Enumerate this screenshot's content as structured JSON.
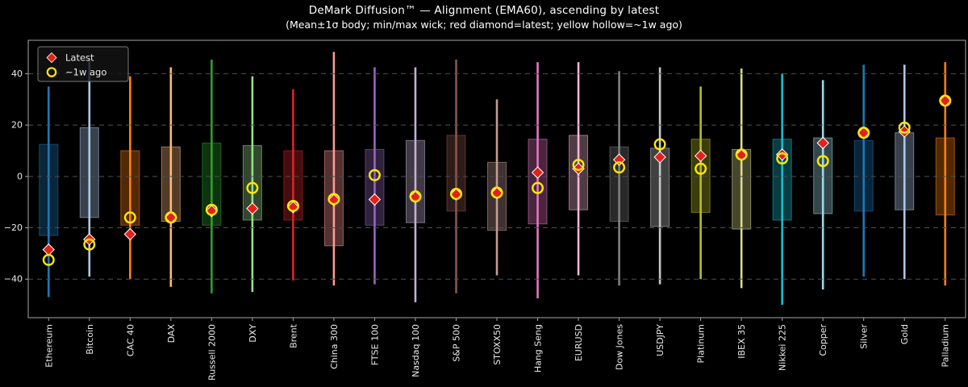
{
  "title": "DeMark Diffusion™ — Alignment (EMA60), ascending by latest",
  "subtitle": "(Mean±1σ body; min/max wick; red diamond=latest; yellow hollow=~1w ago)",
  "legend": {
    "items": [
      {
        "label": "Latest",
        "marker": "red-diamond"
      },
      {
        "label": "~1w ago",
        "marker": "yellow-hollow-circle"
      }
    ]
  },
  "colors": {
    "background": "#000000",
    "axes_frame": "#a6a6a6",
    "grid": "#4f4f4f",
    "tick_label": "#eaeaea",
    "title_text": "#ffffff",
    "latest_marker": "#e32119",
    "week_ago_marker": "#ffe800",
    "marker_edge": "#ffffff",
    "legend_bg": "#141414",
    "legend_border": "#787878"
  },
  "chart_data": {
    "type": "candlestick-range",
    "title": "DeMark Diffusion™ — Alignment (EMA60), ascending by latest",
    "subtitle": "(Mean±1σ body; min/max wick; red diamond=latest; yellow hollow=~1w ago)",
    "xlabel": "",
    "ylabel": "",
    "yticks": [
      -40,
      -20,
      0,
      20,
      40
    ],
    "ylim": [
      -55,
      53
    ],
    "grid": "horizontal-dashed",
    "legend_position": "upper-left",
    "assets": [
      {
        "name": "Ethereum",
        "color": "#1f77b4",
        "min": -47,
        "body_low": -23,
        "body_high": 12.5,
        "max": 35,
        "latest": -28.5,
        "week_ago": -32.5
      },
      {
        "name": "Bitcoin",
        "color": "#aec7e8",
        "min": -39,
        "body_low": -16,
        "body_high": 19,
        "max": 46,
        "latest": -24.5,
        "week_ago": -26.5
      },
      {
        "name": "CAC 40",
        "color": "#ff7f0e",
        "min": -40,
        "body_low": -19,
        "body_high": 10,
        "max": 39,
        "latest": -22.5,
        "week_ago": -16
      },
      {
        "name": "DAX",
        "color": "#ffbb78",
        "min": -43,
        "body_low": -17.5,
        "body_high": 11.5,
        "max": 42.5,
        "latest": -16,
        "week_ago": -16
      },
      {
        "name": "Russell 2000",
        "color": "#2ca02c",
        "min": -45.5,
        "body_low": -19,
        "body_high": 13,
        "max": 45.5,
        "latest": -13.5,
        "week_ago": -13
      },
      {
        "name": "DXY",
        "color": "#98df8a",
        "min": -45,
        "body_low": -17,
        "body_high": 12,
        "max": 39,
        "latest": -12.5,
        "week_ago": -4.5
      },
      {
        "name": "Brent",
        "color": "#d62728",
        "min": -40.5,
        "body_low": -17,
        "body_high": 10,
        "max": 34,
        "latest": -12,
        "week_ago": -11.5
      },
      {
        "name": "China 300",
        "color": "#ff9896",
        "min": -42.5,
        "body_low": -27,
        "body_high": 10,
        "max": 48.5,
        "latest": -9.2,
        "week_ago": -8.8
      },
      {
        "name": "FTSE 100",
        "color": "#9467bd",
        "min": -42,
        "body_low": -19,
        "body_high": 10.5,
        "max": 42.5,
        "latest": -9,
        "week_ago": 0.5
      },
      {
        "name": "Nasdaq 100",
        "color": "#c5b0d5",
        "min": -49,
        "body_low": -18,
        "body_high": 14,
        "max": 42.5,
        "latest": -8,
        "week_ago": -7.8
      },
      {
        "name": "S&P 500",
        "color": "#8c564b",
        "min": -45.5,
        "body_low": -13.5,
        "body_high": 16,
        "max": 45.5,
        "latest": -7,
        "week_ago": -6.8
      },
      {
        "name": "STOXX50",
        "color": "#c49c94",
        "min": -38.5,
        "body_low": -21,
        "body_high": 5.5,
        "max": 30,
        "latest": -6.5,
        "week_ago": -6.3
      },
      {
        "name": "Hang Seng",
        "color": "#e377c2",
        "min": -47.5,
        "body_low": -18.5,
        "body_high": 14.5,
        "max": 44.5,
        "latest": 1.5,
        "week_ago": -4.5
      },
      {
        "name": "EURUSD",
        "color": "#f7b6d2",
        "min": -38.5,
        "body_low": -13,
        "body_high": 16,
        "max": 44.5,
        "latest": 3,
        "week_ago": 4.5
      },
      {
        "name": "Dow Jones",
        "color": "#7f7f7f",
        "min": -42.5,
        "body_low": -17.5,
        "body_high": 11.5,
        "max": 41,
        "latest": 6.5,
        "week_ago": 3.5
      },
      {
        "name": "USDJPY",
        "color": "#c7c7c7",
        "min": -42,
        "body_low": -19.5,
        "body_high": 11,
        "max": 42.5,
        "latest": 7.5,
        "week_ago": 12.5
      },
      {
        "name": "Platinum",
        "color": "#bcbd22",
        "min": -40,
        "body_low": -14,
        "body_high": 14.5,
        "max": 35,
        "latest": 8,
        "week_ago": 3
      },
      {
        "name": "IBEX 35",
        "color": "#dbdb8d",
        "min": -43.5,
        "body_low": -20.5,
        "body_high": 10.5,
        "max": 42,
        "latest": 8.3,
        "week_ago": 8.5
      },
      {
        "name": "Nikkei 225",
        "color": "#17becf",
        "min": -50,
        "body_low": -17,
        "body_high": 14.5,
        "max": 40,
        "latest": 8.5,
        "week_ago": 7
      },
      {
        "name": "Copper",
        "color": "#9edae5",
        "min": -44,
        "body_low": -14.5,
        "body_high": 15,
        "max": 37.5,
        "latest": 13,
        "week_ago": 6
      },
      {
        "name": "Silver",
        "color": "#1f77b4",
        "min": -39,
        "body_low": -13.5,
        "body_high": 14,
        "max": 43.5,
        "latest": 17,
        "week_ago": 17
      },
      {
        "name": "Gold",
        "color": "#aec7e8",
        "min": -40,
        "body_low": -13,
        "body_high": 17,
        "max": 43.5,
        "latest": 17.5,
        "week_ago": 19
      },
      {
        "name": "Palladium",
        "color": "#ff7f0e",
        "min": -42.5,
        "body_low": -15,
        "body_high": 15,
        "max": 44.5,
        "latest": 29.5,
        "week_ago": 29.5
      }
    ]
  }
}
